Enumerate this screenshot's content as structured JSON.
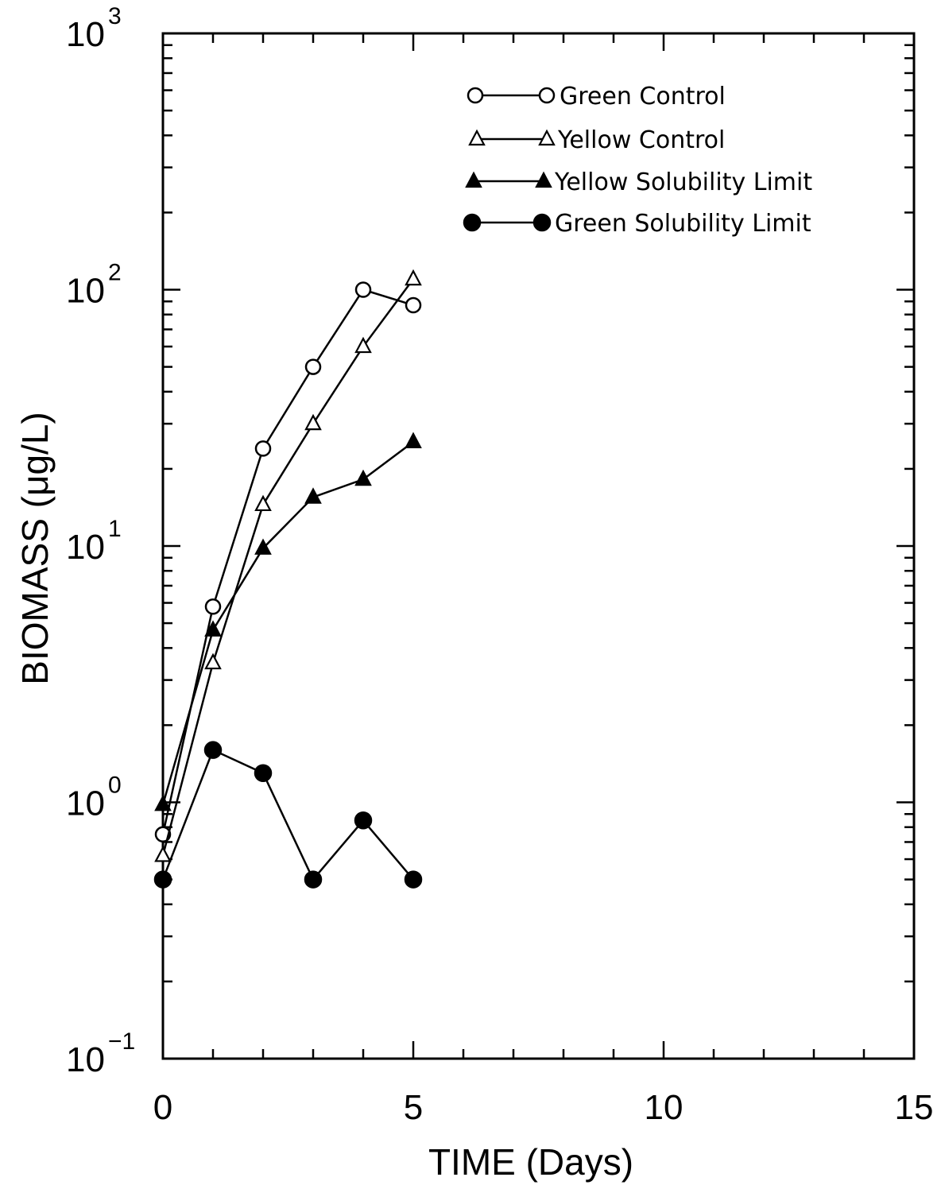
{
  "chart_data": {
    "type": "line",
    "xlabel": "TIME (Days)",
    "ylabel": "BIOMASS (μg/L)",
    "xlim": [
      0,
      15
    ],
    "ylim": [
      0.1,
      1000
    ],
    "y_scale": "log",
    "x_ticks": [
      {
        "value": 0,
        "label": "0"
      },
      {
        "value": 5,
        "label": "5"
      },
      {
        "value": 10,
        "label": "10"
      },
      {
        "value": 15,
        "label": "15"
      }
    ],
    "y_ticks": [
      {
        "value": 0.1,
        "base": "10",
        "exp": "−1"
      },
      {
        "value": 1,
        "base": "10",
        "exp": "0"
      },
      {
        "value": 10,
        "base": "10",
        "exp": "1"
      },
      {
        "value": 100,
        "base": "10",
        "exp": "2"
      },
      {
        "value": 1000,
        "base": "10",
        "exp": "3"
      }
    ],
    "legend_position": "top-right",
    "series": [
      {
        "name": "Green Control",
        "marker": "open-circle",
        "x": [
          0,
          1,
          2,
          3,
          4,
          5
        ],
        "y": [
          0.75,
          5.8,
          24,
          50,
          100,
          87
        ]
      },
      {
        "name": "Yellow Control",
        "marker": "open-triangle",
        "x": [
          0,
          1,
          2,
          3,
          4,
          5
        ],
        "y": [
          0.62,
          3.5,
          14.5,
          30,
          60,
          110
        ]
      },
      {
        "name": "Yellow Solubility Limit",
        "marker": "filled-triangle",
        "x": [
          0,
          1,
          2,
          3,
          4,
          5
        ],
        "y": [
          0.98,
          4.7,
          9.8,
          15.5,
          18.2,
          25.5
        ]
      },
      {
        "name": "Green Solubility Limit",
        "marker": "filled-circle",
        "x": [
          0,
          1,
          2,
          3,
          4,
          5
        ],
        "y": [
          0.5,
          1.6,
          1.3,
          0.5,
          0.85,
          0.5
        ]
      }
    ]
  }
}
